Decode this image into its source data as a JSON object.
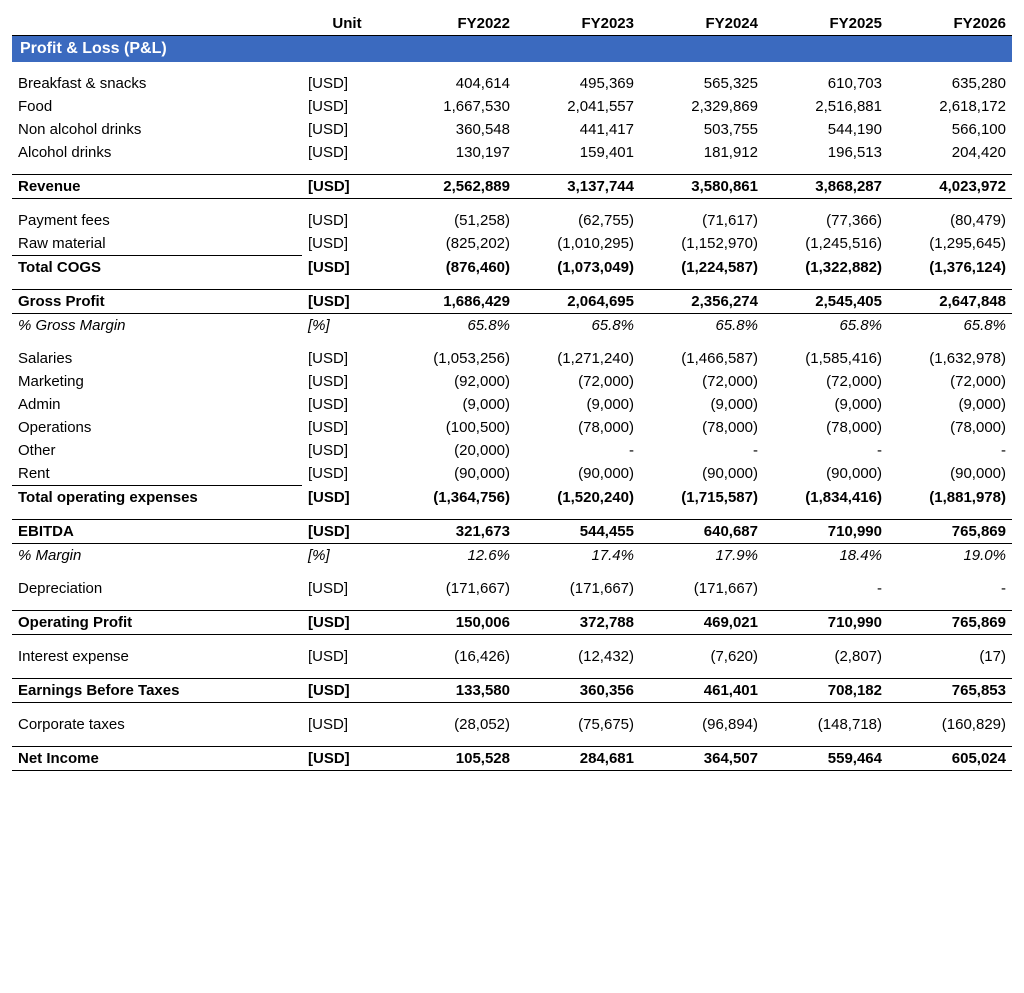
{
  "table": {
    "background_color": "#ffffff",
    "text_color": "#000000",
    "border_color": "#000000",
    "font_family": "Arial",
    "font_size_pt": 11,
    "section_header_bg": "#3b6abf",
    "section_header_fg": "#ffffff",
    "columns": {
      "unit_header": "Unit",
      "years": [
        "FY2022",
        "FY2023",
        "FY2024",
        "FY2025",
        "FY2026"
      ]
    },
    "pl_title": "Profit & Loss (P&L)",
    "rows": [
      {
        "id": "breakfast",
        "label": "Breakfast & snacks",
        "unit": "[USD]",
        "vals": [
          "404,614",
          "495,369",
          "565,325",
          "610,703",
          "635,280"
        ]
      },
      {
        "id": "food",
        "label": "Food",
        "unit": "[USD]",
        "vals": [
          "1,667,530",
          "2,041,557",
          "2,329,869",
          "2,516,881",
          "2,618,172"
        ]
      },
      {
        "id": "na_drinks",
        "label": "Non alcohol drinks",
        "unit": "[USD]",
        "vals": [
          "360,548",
          "441,417",
          "503,755",
          "544,190",
          "566,100"
        ]
      },
      {
        "id": "a_drinks",
        "label": "Alcohol drinks",
        "unit": "[USD]",
        "vals": [
          "130,197",
          "159,401",
          "181,912",
          "196,513",
          "204,420"
        ]
      },
      {
        "id": "revenue",
        "label": "Revenue",
        "unit": "[USD]",
        "vals": [
          "2,562,889",
          "3,137,744",
          "3,580,861",
          "3,868,287",
          "4,023,972"
        ],
        "bold": true,
        "box": true
      },
      {
        "id": "pay_fees",
        "label": "Payment fees",
        "unit": "[USD]",
        "vals": [
          "(51,258)",
          "(62,755)",
          "(71,617)",
          "(77,366)",
          "(80,479)"
        ]
      },
      {
        "id": "raw_mat",
        "label": "Raw material",
        "unit": "[USD]",
        "vals": [
          "(825,202)",
          "(1,010,295)",
          "(1,152,970)",
          "(1,245,516)",
          "(1,295,645)"
        ],
        "thinline": true
      },
      {
        "id": "cogs",
        "label": "Total COGS",
        "unit": "[USD]",
        "vals": [
          "(876,460)",
          "(1,073,049)",
          "(1,224,587)",
          "(1,322,882)",
          "(1,376,124)"
        ],
        "bold": true
      },
      {
        "id": "gross",
        "label": "Gross Profit",
        "unit": "[USD]",
        "vals": [
          "1,686,429",
          "2,064,695",
          "2,356,274",
          "2,545,405",
          "2,647,848"
        ],
        "bold": true,
        "box": true
      },
      {
        "id": "gross_m",
        "label": "% Gross Margin",
        "unit": "[%]",
        "vals": [
          "65.8%",
          "65.8%",
          "65.8%",
          "65.8%",
          "65.8%"
        ],
        "italic": true
      },
      {
        "id": "salaries",
        "label": "Salaries",
        "unit": "[USD]",
        "vals": [
          "(1,053,256)",
          "(1,271,240)",
          "(1,466,587)",
          "(1,585,416)",
          "(1,632,978)"
        ]
      },
      {
        "id": "marketing",
        "label": "Marketing",
        "unit": "[USD]",
        "vals": [
          "(92,000)",
          "(72,000)",
          "(72,000)",
          "(72,000)",
          "(72,000)"
        ]
      },
      {
        "id": "admin",
        "label": "Admin",
        "unit": "[USD]",
        "vals": [
          "(9,000)",
          "(9,000)",
          "(9,000)",
          "(9,000)",
          "(9,000)"
        ]
      },
      {
        "id": "ops",
        "label": "Operations",
        "unit": "[USD]",
        "vals": [
          "(100,500)",
          "(78,000)",
          "(78,000)",
          "(78,000)",
          "(78,000)"
        ]
      },
      {
        "id": "other",
        "label": "Other",
        "unit": "[USD]",
        "vals": [
          "(20,000)",
          "-",
          "-",
          "-",
          "-"
        ]
      },
      {
        "id": "rent",
        "label": "Rent",
        "unit": "[USD]",
        "vals": [
          "(90,000)",
          "(90,000)",
          "(90,000)",
          "(90,000)",
          "(90,000)"
        ],
        "thinline": true
      },
      {
        "id": "opex",
        "label": "Total operating expenses",
        "unit": "[USD]",
        "vals": [
          "(1,364,756)",
          "(1,520,240)",
          "(1,715,587)",
          "(1,834,416)",
          "(1,881,978)"
        ],
        "bold": true
      },
      {
        "id": "ebitda",
        "label": "EBITDA",
        "unit": "[USD]",
        "vals": [
          "321,673",
          "544,455",
          "640,687",
          "710,990",
          "765,869"
        ],
        "bold": true,
        "box": true
      },
      {
        "id": "ebitda_m",
        "label": "% Margin",
        "unit": "[%]",
        "vals": [
          "12.6%",
          "17.4%",
          "17.9%",
          "18.4%",
          "19.0%"
        ],
        "italic": true
      },
      {
        "id": "dep",
        "label": "Depreciation",
        "unit": "[USD]",
        "vals": [
          "(171,667)",
          "(171,667)",
          "(171,667)",
          "-",
          "-"
        ]
      },
      {
        "id": "op_profit",
        "label": "Operating Profit",
        "unit": "[USD]",
        "vals": [
          "150,006",
          "372,788",
          "469,021",
          "710,990",
          "765,869"
        ],
        "bold": true,
        "box": true
      },
      {
        "id": "interest",
        "label": "Interest expense",
        "unit": "[USD]",
        "vals": [
          "(16,426)",
          "(12,432)",
          "(7,620)",
          "(2,807)",
          "(17)"
        ]
      },
      {
        "id": "ebt",
        "label": "Earnings Before Taxes",
        "unit": "[USD]",
        "vals": [
          "133,580",
          "360,356",
          "461,401",
          "708,182",
          "765,853"
        ],
        "bold": true,
        "box": true
      },
      {
        "id": "taxes",
        "label": "Corporate taxes",
        "unit": "[USD]",
        "vals": [
          "(28,052)",
          "(75,675)",
          "(96,894)",
          "(148,718)",
          "(160,829)"
        ]
      },
      {
        "id": "net",
        "label": "Net Income",
        "unit": "[USD]",
        "vals": [
          "105,528",
          "284,681",
          "364,507",
          "559,464",
          "605,024"
        ],
        "bold": true,
        "box": true
      }
    ],
    "spacers_after": [
      "__header__",
      "a_drinks",
      "revenue",
      "cogs",
      "gross_m",
      "opex",
      "ebitda_m",
      "dep",
      "op_profit",
      "interest",
      "ebt",
      "taxes"
    ]
  }
}
